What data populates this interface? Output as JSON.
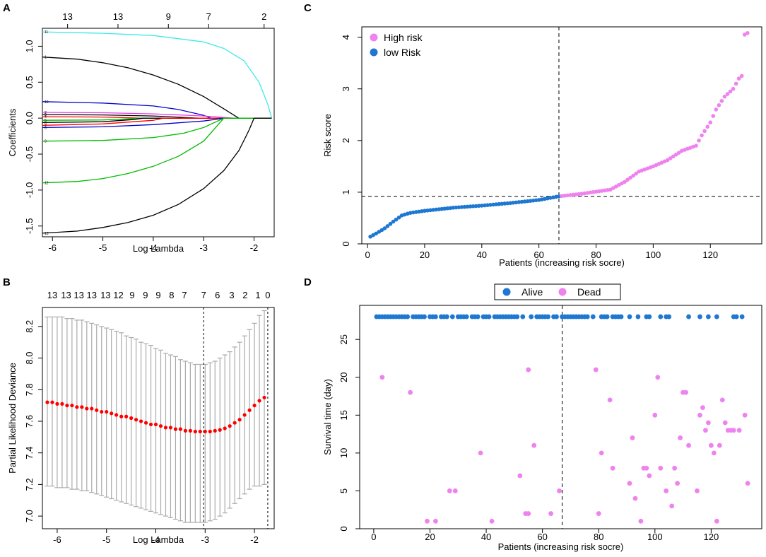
{
  "figure": {
    "panel_labels": [
      "A",
      "B",
      "C",
      "D"
    ]
  },
  "chart_data": [
    {
      "panel": "A",
      "type": "line",
      "title": "",
      "xlabel": "Log Lambda",
      "ylabel": "Coefficients",
      "xlim": [
        -6.2,
        -1.6
      ],
      "ylim": [
        -1.65,
        1.25
      ],
      "xticks": [
        -6,
        -5,
        -4,
        -3,
        -2
      ],
      "yticks": [
        -1.5,
        -1.0,
        -0.5,
        0.0,
        0.5,
        1.0
      ],
      "ytick_labels": [
        "-1.5",
        "-1.0",
        "-0.5",
        "0.0",
        "0.5",
        "1.0"
      ],
      "top_axis": {
        "ticks": [
          -5.7,
          -4.7,
          -3.7,
          -2.9,
          -1.8
        ],
        "labels": [
          "13",
          "13",
          "9",
          "7",
          "2"
        ]
      },
      "series": [
        {
          "name": "11",
          "color": "#3ee8e8",
          "x": [
            -6.2,
            -5.0,
            -4.0,
            -3.0,
            -2.6,
            -2.2,
            -1.9,
            -1.72,
            -1.65
          ],
          "values": [
            1.2,
            1.18,
            1.15,
            1.06,
            0.97,
            0.8,
            0.5,
            0.18,
            0.0
          ]
        },
        {
          "name": "1",
          "color": "#000000",
          "x": [
            -6.2,
            -5.5,
            -5.0,
            -4.5,
            -4.0,
            -3.5,
            -3.0,
            -2.6,
            -2.35,
            -2.3
          ],
          "values": [
            0.85,
            0.82,
            0.77,
            0.7,
            0.6,
            0.47,
            0.3,
            0.13,
            0.02,
            0.0
          ]
        },
        {
          "name": "10",
          "color": "#0000cc",
          "x": [
            -6.2,
            -5.0,
            -4.0,
            -3.5,
            -3.0,
            -2.85
          ],
          "values": [
            0.23,
            0.21,
            0.17,
            0.12,
            0.04,
            0.0
          ]
        },
        {
          "name": "2",
          "color": "#e838e8",
          "x": [
            -6.2,
            -5.0,
            -4.0,
            -3.0,
            -2.4
          ],
          "values": [
            0.08,
            0.075,
            0.06,
            0.03,
            0.0
          ]
        },
        {
          "name": "3",
          "color": "#000000",
          "x": [
            -6.2,
            -5.0,
            -4.0,
            -3.4,
            -3.1
          ],
          "values": [
            0.05,
            0.045,
            0.03,
            0.01,
            0.0
          ]
        },
        {
          "name": "4",
          "color": "#ff0000",
          "x": [
            -6.2,
            -5.0,
            -4.5,
            -4.2
          ],
          "values": [
            0.02,
            0.015,
            0.005,
            0.0
          ]
        },
        {
          "name": "5",
          "color": "#00bb00",
          "x": [
            -6.2,
            -5.0,
            -4.5,
            -4.3
          ],
          "values": [
            -0.03,
            -0.025,
            -0.01,
            0.0
          ]
        },
        {
          "name": "6",
          "color": "#000000",
          "x": [
            -6.2,
            -5.0,
            -4.4,
            -4.2
          ],
          "values": [
            -0.06,
            -0.05,
            -0.02,
            0.0
          ]
        },
        {
          "name": "7",
          "color": "#ff0000",
          "x": [
            -6.2,
            -5.0,
            -4.0,
            -3.8
          ],
          "values": [
            -0.1,
            -0.08,
            -0.03,
            0.0
          ]
        },
        {
          "name": "8",
          "color": "#0000cc",
          "x": [
            -6.2,
            -5.0,
            -4.0,
            -3.0,
            -2.6
          ],
          "values": [
            -0.13,
            -0.12,
            -0.09,
            -0.04,
            0.0
          ]
        },
        {
          "name": "9",
          "color": "#00bb00",
          "x": [
            -6.2,
            -5.0,
            -4.0,
            -3.4,
            -3.0,
            -2.75,
            -2.6
          ],
          "values": [
            -0.32,
            -0.31,
            -0.27,
            -0.21,
            -0.13,
            -0.05,
            0.0
          ]
        },
        {
          "name": "12",
          "color": "#00bb00",
          "x": [
            -6.2,
            -5.5,
            -5.0,
            -4.5,
            -4.0,
            -3.5,
            -3.0,
            -2.75,
            -2.6
          ],
          "values": [
            -0.9,
            -0.88,
            -0.84,
            -0.77,
            -0.67,
            -0.53,
            -0.32,
            -0.12,
            0.0
          ]
        },
        {
          "name": "13",
          "color": "#000000",
          "x": [
            -6.2,
            -5.5,
            -5.0,
            -4.5,
            -4.0,
            -3.5,
            -3.0,
            -2.6,
            -2.3,
            -2.1,
            -2.0
          ],
          "values": [
            -1.6,
            -1.57,
            -1.52,
            -1.45,
            -1.35,
            -1.2,
            -0.98,
            -0.73,
            -0.45,
            -0.17,
            0.0
          ]
        }
      ]
    },
    {
      "panel": "B",
      "type": "scatter",
      "title": "",
      "xlabel": "Log Lambda",
      "ylabel": "Partial Likelihood Deviance",
      "xlim": [
        -6.3,
        -1.6
      ],
      "ylim": [
        6.92,
        8.32
      ],
      "xticks": [
        -6,
        -5,
        -4,
        -3,
        -2
      ],
      "yticks": [
        7.0,
        7.2,
        7.4,
        7.6,
        7.8,
        8.0,
        8.2
      ],
      "ytick_labels": [
        "7.0",
        "7.2",
        "7.4",
        "7.6",
        "7.8",
        "8.0",
        "8.2"
      ],
      "top_axis": {
        "ticks": [
          -6.1,
          -5.82,
          -5.56,
          -5.3,
          -5.02,
          -4.76,
          -4.48,
          -4.21,
          -3.95,
          -3.68,
          -3.42,
          -3.03,
          -2.75,
          -2.46,
          -2.19,
          -1.93,
          -1.73
        ],
        "labels": [
          "13",
          "13",
          "13",
          "13",
          "13",
          "12",
          "9",
          "9",
          "9",
          "8",
          "7",
          "7",
          "6",
          "3",
          "2",
          "1",
          "0"
        ]
      },
      "x": [
        -6.2,
        -6.1,
        -6.0,
        -5.9,
        -5.8,
        -5.7,
        -5.6,
        -5.5,
        -5.4,
        -5.3,
        -5.2,
        -5.1,
        -5.0,
        -4.9,
        -4.8,
        -4.7,
        -4.6,
        -4.5,
        -4.4,
        -4.3,
        -4.2,
        -4.1,
        -4.0,
        -3.9,
        -3.8,
        -3.7,
        -3.6,
        -3.5,
        -3.4,
        -3.3,
        -3.2,
        -3.1,
        -3.0,
        -2.9,
        -2.8,
        -2.7,
        -2.6,
        -2.5,
        -2.4,
        -2.3,
        -2.2,
        -2.1,
        -2.0,
        -1.9,
        -1.8
      ],
      "values": [
        7.72,
        7.72,
        7.71,
        7.71,
        7.7,
        7.7,
        7.69,
        7.69,
        7.68,
        7.68,
        7.67,
        7.66,
        7.66,
        7.65,
        7.64,
        7.63,
        7.63,
        7.62,
        7.61,
        7.6,
        7.59,
        7.58,
        7.58,
        7.57,
        7.56,
        7.56,
        7.55,
        7.55,
        7.54,
        7.54,
        7.535,
        7.535,
        7.535,
        7.535,
        7.54,
        7.545,
        7.555,
        7.57,
        7.59,
        7.61,
        7.64,
        7.67,
        7.7,
        7.73,
        7.75
      ],
      "upper": [
        8.26,
        8.26,
        8.26,
        8.26,
        8.25,
        8.25,
        8.24,
        8.24,
        8.23,
        8.22,
        8.21,
        8.2,
        8.19,
        8.18,
        8.17,
        8.16,
        8.14,
        8.13,
        8.12,
        8.1,
        8.09,
        8.08,
        8.06,
        8.05,
        8.03,
        8.02,
        8.01,
        7.99,
        7.98,
        7.97,
        7.96,
        7.96,
        7.96,
        7.97,
        7.98,
        8.0,
        8.02,
        8.04,
        8.07,
        8.1,
        8.14,
        8.18,
        8.22,
        8.27,
        8.3
      ],
      "lower": [
        7.19,
        7.19,
        7.18,
        7.18,
        7.18,
        7.17,
        7.17,
        7.16,
        7.16,
        7.15,
        7.14,
        7.13,
        7.12,
        7.11,
        7.1,
        7.09,
        7.08,
        7.07,
        7.06,
        7.05,
        7.04,
        7.03,
        7.02,
        7.01,
        7.0,
        6.99,
        6.98,
        6.97,
        6.96,
        6.96,
        6.96,
        6.96,
        6.96,
        6.97,
        6.98,
        7.0,
        7.02,
        7.05,
        7.08,
        7.11,
        7.14,
        7.17,
        7.19,
        7.19,
        7.2
      ],
      "point_color": "#ff0000",
      "errorbar_color": "#aaaaaa",
      "vlines": [
        -3.03,
        -1.73
      ]
    },
    {
      "panel": "C",
      "type": "scatter",
      "title": "",
      "xlabel": "Patients (increasing risk socre)",
      "ylabel": "Risk score",
      "xlim": [
        -2,
        138
      ],
      "ylim": [
        0,
        4.2
      ],
      "xticks": [
        0,
        20,
        40,
        60,
        80,
        100,
        120
      ],
      "yticks": [
        0,
        1,
        2,
        3,
        4
      ],
      "ytick_labels": [
        "0",
        "1",
        "2",
        "3",
        "4"
      ],
      "cutoff_x": 67,
      "cutoff_y": 0.92,
      "n_patients": 133,
      "curve_knots": {
        "x": [
          1,
          3,
          6,
          9,
          12,
          15,
          20,
          30,
          40,
          50,
          60,
          67,
          75,
          85,
          90,
          95,
          100,
          105,
          110,
          115,
          117,
          120,
          122,
          125,
          128,
          130,
          131,
          132,
          133
        ],
        "values": [
          0.14,
          0.2,
          0.3,
          0.43,
          0.55,
          0.6,
          0.64,
          0.7,
          0.74,
          0.79,
          0.85,
          0.92,
          0.97,
          1.05,
          1.2,
          1.4,
          1.5,
          1.62,
          1.8,
          1.9,
          2.1,
          2.35,
          2.6,
          2.85,
          3.0,
          3.2,
          3.25,
          4.05,
          4.08
        ]
      },
      "legend": [
        {
          "name": "High risk",
          "color": "#ee82ee"
        },
        {
          "name": "low Risk",
          "color": "#1e78d2"
        }
      ]
    },
    {
      "panel": "D",
      "type": "scatter",
      "title": "",
      "xlabel": "Patients (increasing risk socre)",
      "ylabel": "Survival time (day)",
      "xlim": [
        -5,
        138
      ],
      "ylim": [
        0,
        29.5
      ],
      "xticks": [
        0,
        20,
        40,
        60,
        80,
        100,
        120
      ],
      "yticks": [
        0,
        5,
        10,
        15,
        20,
        25
      ],
      "ytick_labels": [
        "0",
        "5",
        "10",
        "15",
        "20",
        "25"
      ],
      "cutoff_x": 67,
      "legend": [
        {
          "name": "Alive",
          "color": "#1e78d2"
        },
        {
          "name": "Dead",
          "color": "#ee82ee"
        }
      ],
      "series": [
        {
          "name": "Alive",
          "color": "#1e78d2",
          "x": [
            1,
            2,
            3,
            4,
            5,
            6,
            7,
            8,
            9,
            10,
            11,
            12,
            14,
            15,
            16,
            17,
            18,
            20,
            21,
            22,
            24,
            25,
            26,
            28,
            30,
            31,
            32,
            33,
            35,
            36,
            37,
            39,
            40,
            41,
            43,
            44,
            45,
            46,
            47,
            48,
            49,
            50,
            51,
            53,
            56,
            58,
            59,
            60,
            61,
            62,
            64,
            65,
            67,
            68,
            69,
            70,
            71,
            72,
            73,
            74,
            75,
            76,
            78,
            81,
            82,
            83,
            85,
            86,
            87,
            88,
            91,
            94,
            97,
            98,
            102,
            104,
            105,
            112,
            116,
            119,
            122,
            128,
            129,
            131
          ],
          "values": [
            28,
            28,
            28,
            28,
            28,
            28,
            28,
            28,
            28,
            28,
            28,
            28,
            28,
            28,
            28,
            28,
            28,
            28,
            28,
            28,
            28,
            28,
            28,
            28,
            28,
            28,
            28,
            28,
            28,
            28,
            28,
            28,
            28,
            28,
            28,
            28,
            28,
            28,
            28,
            28,
            28,
            28,
            28,
            28,
            28,
            28,
            28,
            28,
            28,
            28,
            28,
            28,
            28,
            28,
            28,
            28,
            28,
            28,
            28,
            28,
            28,
            28,
            28,
            28,
            28,
            28,
            28,
            28,
            28,
            28,
            28,
            28,
            28,
            28,
            28,
            28,
            28,
            28,
            28,
            28,
            28,
            28,
            28,
            28
          ]
        },
        {
          "name": "Dead",
          "color": "#ee82ee",
          "x": [
            3,
            13,
            19,
            22,
            27,
            29,
            38,
            42,
            52,
            54,
            55,
            55,
            57,
            63,
            66,
            79,
            80,
            81,
            84,
            85,
            91,
            92,
            93,
            95,
            96,
            97,
            98,
            100,
            101,
            102,
            104,
            106,
            107,
            108,
            109,
            110,
            111,
            112,
            115,
            116,
            117,
            118,
            119,
            120,
            121,
            122,
            123,
            124,
            125,
            126,
            127,
            128,
            130,
            132,
            133
          ],
          "values": [
            20,
            18,
            1,
            1,
            5,
            5,
            10,
            1,
            7,
            2,
            2,
            21,
            11,
            2,
            5,
            21,
            2,
            10,
            17,
            8,
            6,
            12,
            4,
            1,
            8,
            8,
            7,
            15,
            20,
            8,
            5,
            3,
            8,
            6,
            12,
            18,
            18,
            11,
            5,
            15,
            16,
            13,
            14,
            11,
            10,
            1,
            11,
            17,
            14,
            13,
            13,
            13,
            13,
            15,
            6
          ]
        }
      ]
    }
  ]
}
